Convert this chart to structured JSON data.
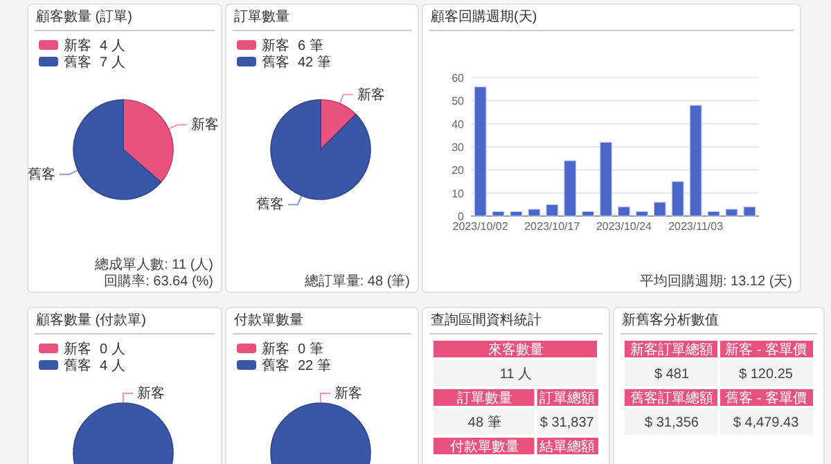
{
  "chart_data": [
    {
      "type": "pie",
      "title": "顧客數量 (訂單)",
      "categories": [
        "新客",
        "舊客"
      ],
      "values": [
        4,
        7
      ],
      "value_labels": [
        "4 人",
        "7 人"
      ],
      "colors": [
        "#e8527d",
        "#3a56a8"
      ],
      "legend": "top left",
      "annotations": [
        "總成單人數: 11 (人)",
        "回購率: 63.64 (%)"
      ]
    },
    {
      "type": "pie",
      "title": "訂單數量",
      "categories": [
        "新客",
        "舊客"
      ],
      "values": [
        6,
        42
      ],
      "value_labels": [
        "6 筆",
        "42 筆"
      ],
      "colors": [
        "#e8527d",
        "#3a56a8"
      ],
      "legend": "top left",
      "annotations": [
        "總訂單量: 48 (筆)"
      ]
    },
    {
      "type": "bar",
      "title": "顧客回購週期(天)",
      "categories": [
        "2023/10/02",
        null,
        null,
        null,
        "2023/10/17",
        null,
        null,
        null,
        "2023/10/24",
        null,
        null,
        null,
        "2023/11/03",
        null,
        null,
        null
      ],
      "values": [
        56,
        2,
        2,
        3,
        5,
        24,
        2,
        32,
        4,
        2,
        6,
        15,
        48,
        2,
        3,
        4
      ],
      "color": "#4a66c8",
      "ylim": [
        0,
        60
      ],
      "yticks": [
        0,
        10,
        20,
        30,
        40,
        50,
        60
      ],
      "grid": "y",
      "annotations": [
        "平均回購週期: 13.12 (天)"
      ]
    },
    {
      "type": "pie",
      "title": "顧客數量 (付款單)",
      "categories": [
        "新客",
        "舊客"
      ],
      "values": [
        0,
        4
      ],
      "value_labels": [
        "0 人",
        "4 人"
      ],
      "colors": [
        "#e8527d",
        "#3a56a8"
      ],
      "legend": "top left"
    },
    {
      "type": "pie",
      "title": "付款單數量",
      "categories": [
        "新客",
        "舊客"
      ],
      "values": [
        0,
        22
      ],
      "value_labels": [
        "0 筆",
        "22 筆"
      ],
      "colors": [
        "#e8527d",
        "#3a56a8"
      ],
      "legend": "top left"
    },
    {
      "type": "other",
      "title": "查詢區間資料統計",
      "annotations": [
        "來客數量",
        "11 人",
        "訂單數量",
        "訂單總額",
        "48 筆",
        "$ 31,837",
        "付款單數量",
        "結單總額"
      ]
    },
    {
      "type": "other",
      "title": "新舊客分析數值",
      "annotations": [
        "新客訂單總額",
        "新客 - 客單價",
        "$ 481",
        "$ 120.25",
        "舊客訂單總額",
        "舊客 - 客單價",
        "$ 31,356",
        "$ 4,479.43"
      ]
    }
  ]
}
